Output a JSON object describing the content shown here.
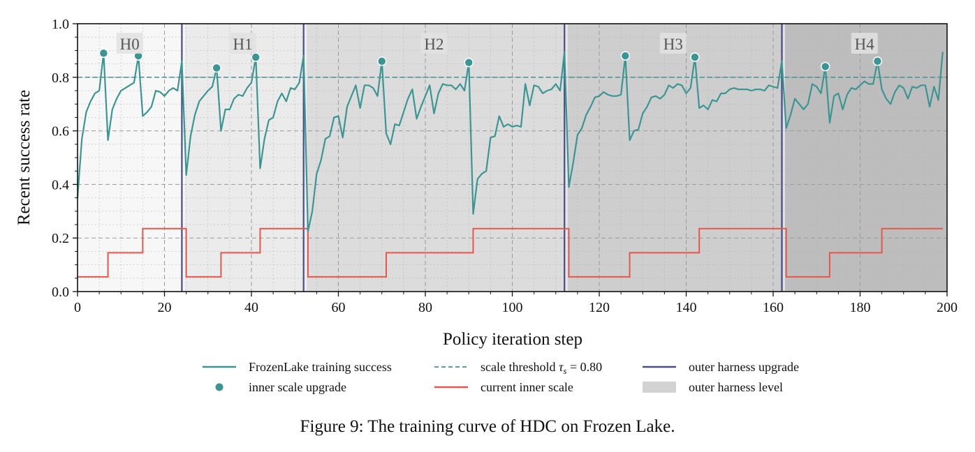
{
  "caption": "Figure 9: The training curve of HDC on Frozen Lake.",
  "chart_data": {
    "type": "line",
    "xlabel": "Policy iteration step",
    "ylabel": "Recent success rate",
    "xlim": [
      0,
      200
    ],
    "ylim": [
      0.0,
      1.0
    ],
    "x_ticks": [
      0,
      20,
      40,
      60,
      80,
      100,
      120,
      140,
      160,
      180,
      200
    ],
    "y_ticks": [
      "0.0",
      "0.2",
      "0.4",
      "0.6",
      "0.8",
      "1.0"
    ],
    "grid": true,
    "legend_placement": "below plot",
    "legend": [
      {
        "label": "FrozenLake training success",
        "kind": "line",
        "color": "#3a9692"
      },
      {
        "label": "inner scale upgrade",
        "kind": "marker",
        "color": "#3a9692"
      },
      {
        "label": "scale threshold τ_s = 0.80",
        "kind": "dashed",
        "color": "#3a9692"
      },
      {
        "label": "current inner scale",
        "kind": "line",
        "color": "#e8564a"
      },
      {
        "label": "outer harness upgrade",
        "kind": "line",
        "color": "#4a4e8c"
      },
      {
        "label": "outer harness level",
        "kind": "patch",
        "color": "#d3d3d3"
      }
    ],
    "threshold": 0.8,
    "outer_harness_upgrades": [
      24,
      52,
      112,
      162
    ],
    "harness_levels": [
      {
        "label": "H0",
        "x_start": 0,
        "x_end": 24,
        "label_x": 12,
        "color": "#f7f7f7"
      },
      {
        "label": "H1",
        "x_start": 24,
        "x_end": 52,
        "label_x": 38,
        "color": "#ebebeb"
      },
      {
        "label": "H2",
        "x_start": 52,
        "x_end": 112,
        "label_x": 82,
        "color": "#dcdcdc"
      },
      {
        "label": "H3",
        "x_start": 112,
        "x_end": 162,
        "label_x": 137,
        "color": "#cecece"
      },
      {
        "label": "H4",
        "x_start": 162,
        "x_end": 200,
        "label_x": 181,
        "color": "#bdbdbd"
      }
    ],
    "series": [
      {
        "name": "FrozenLake training success",
        "color": "#3a9692",
        "points": [
          [
            0,
            0.35
          ],
          [
            1,
            0.57
          ],
          [
            2,
            0.67
          ],
          [
            3,
            0.71
          ],
          [
            4,
            0.74
          ],
          [
            5,
            0.75
          ],
          [
            6,
            0.89
          ],
          [
            7,
            0.565
          ],
          [
            8,
            0.68
          ],
          [
            9,
            0.72
          ],
          [
            10,
            0.75
          ],
          [
            11,
            0.76
          ],
          [
            12,
            0.77
          ],
          [
            13,
            0.78
          ],
          [
            14,
            0.88
          ],
          [
            15,
            0.655
          ],
          [
            16,
            0.67
          ],
          [
            17,
            0.69
          ],
          [
            18,
            0.75
          ],
          [
            19,
            0.745
          ],
          [
            20,
            0.73
          ],
          [
            21,
            0.75
          ],
          [
            22,
            0.76
          ],
          [
            23,
            0.75
          ],
          [
            24,
            0.86
          ],
          [
            25,
            0.435
          ],
          [
            26,
            0.58
          ],
          [
            27,
            0.66
          ],
          [
            28,
            0.71
          ],
          [
            29,
            0.73
          ],
          [
            30,
            0.75
          ],
          [
            31,
            0.765
          ],
          [
            32,
            0.835
          ],
          [
            33,
            0.6
          ],
          [
            34,
            0.68
          ],
          [
            35,
            0.68
          ],
          [
            36,
            0.72
          ],
          [
            37,
            0.735
          ],
          [
            38,
            0.73
          ],
          [
            39,
            0.76
          ],
          [
            40,
            0.78
          ],
          [
            41,
            0.875
          ],
          [
            42,
            0.46
          ],
          [
            43,
            0.57
          ],
          [
            44,
            0.64
          ],
          [
            45,
            0.65
          ],
          [
            46,
            0.71
          ],
          [
            47,
            0.74
          ],
          [
            48,
            0.71
          ],
          [
            49,
            0.76
          ],
          [
            50,
            0.755
          ],
          [
            51,
            0.78
          ],
          [
            52,
            0.88
          ],
          [
            53,
            0.225
          ],
          [
            54,
            0.3
          ],
          [
            55,
            0.44
          ],
          [
            56,
            0.49
          ],
          [
            57,
            0.57
          ],
          [
            58,
            0.58
          ],
          [
            59,
            0.65
          ],
          [
            60,
            0.655
          ],
          [
            61,
            0.575
          ],
          [
            62,
            0.69
          ],
          [
            63,
            0.73
          ],
          [
            64,
            0.77
          ],
          [
            65,
            0.685
          ],
          [
            66,
            0.77
          ],
          [
            67,
            0.77
          ],
          [
            68,
            0.76
          ],
          [
            69,
            0.73
          ],
          [
            70,
            0.86
          ],
          [
            71,
            0.59
          ],
          [
            72,
            0.55
          ],
          [
            73,
            0.625
          ],
          [
            74,
            0.62
          ],
          [
            75,
            0.67
          ],
          [
            76,
            0.72
          ],
          [
            77,
            0.755
          ],
          [
            78,
            0.645
          ],
          [
            79,
            0.69
          ],
          [
            80,
            0.73
          ],
          [
            81,
            0.77
          ],
          [
            82,
            0.665
          ],
          [
            83,
            0.74
          ],
          [
            84,
            0.775
          ],
          [
            85,
            0.77
          ],
          [
            86,
            0.77
          ],
          [
            87,
            0.755
          ],
          [
            88,
            0.775
          ],
          [
            89,
            0.75
          ],
          [
            90,
            0.855
          ],
          [
            91,
            0.29
          ],
          [
            92,
            0.42
          ],
          [
            93,
            0.44
          ],
          [
            94,
            0.45
          ],
          [
            95,
            0.575
          ],
          [
            96,
            0.58
          ],
          [
            97,
            0.655
          ],
          [
            98,
            0.615
          ],
          [
            99,
            0.625
          ],
          [
            100,
            0.615
          ],
          [
            101,
            0.62
          ],
          [
            102,
            0.615
          ],
          [
            103,
            0.775
          ],
          [
            104,
            0.695
          ],
          [
            105,
            0.77
          ],
          [
            106,
            0.765
          ],
          [
            107,
            0.74
          ],
          [
            108,
            0.75
          ],
          [
            109,
            0.755
          ],
          [
            110,
            0.775
          ],
          [
            111,
            0.75
          ],
          [
            112,
            0.895
          ],
          [
            113,
            0.39
          ],
          [
            114,
            0.48
          ],
          [
            115,
            0.585
          ],
          [
            116,
            0.61
          ],
          [
            117,
            0.66
          ],
          [
            118,
            0.69
          ],
          [
            119,
            0.725
          ],
          [
            120,
            0.73
          ],
          [
            121,
            0.745
          ],
          [
            122,
            0.735
          ],
          [
            123,
            0.73
          ],
          [
            124,
            0.73
          ],
          [
            125,
            0.735
          ],
          [
            126,
            0.88
          ],
          [
            127,
            0.565
          ],
          [
            128,
            0.6
          ],
          [
            129,
            0.605
          ],
          [
            130,
            0.665
          ],
          [
            131,
            0.69
          ],
          [
            132,
            0.725
          ],
          [
            133,
            0.73
          ],
          [
            134,
            0.72
          ],
          [
            135,
            0.735
          ],
          [
            136,
            0.77
          ],
          [
            137,
            0.76
          ],
          [
            138,
            0.775
          ],
          [
            139,
            0.77
          ],
          [
            140,
            0.74
          ],
          [
            141,
            0.76
          ],
          [
            142,
            0.875
          ],
          [
            143,
            0.685
          ],
          [
            144,
            0.695
          ],
          [
            145,
            0.68
          ],
          [
            146,
            0.715
          ],
          [
            147,
            0.71
          ],
          [
            148,
            0.74
          ],
          [
            149,
            0.74
          ],
          [
            150,
            0.755
          ],
          [
            151,
            0.76
          ],
          [
            152,
            0.755
          ],
          [
            153,
            0.755
          ],
          [
            154,
            0.755
          ],
          [
            155,
            0.75
          ],
          [
            156,
            0.755
          ],
          [
            157,
            0.755
          ],
          [
            158,
            0.75
          ],
          [
            159,
            0.77
          ],
          [
            160,
            0.765
          ],
          [
            161,
            0.76
          ],
          [
            162,
            0.86
          ],
          [
            163,
            0.61
          ],
          [
            164,
            0.66
          ],
          [
            165,
            0.72
          ],
          [
            166,
            0.7
          ],
          [
            167,
            0.68
          ],
          [
            168,
            0.7
          ],
          [
            169,
            0.775
          ],
          [
            170,
            0.765
          ],
          [
            171,
            0.74
          ],
          [
            172,
            0.84
          ],
          [
            173,
            0.63
          ],
          [
            174,
            0.73
          ],
          [
            175,
            0.74
          ],
          [
            176,
            0.68
          ],
          [
            177,
            0.735
          ],
          [
            178,
            0.76
          ],
          [
            179,
            0.755
          ],
          [
            180,
            0.77
          ],
          [
            181,
            0.785
          ],
          [
            182,
            0.775
          ],
          [
            183,
            0.775
          ],
          [
            184,
            0.86
          ],
          [
            185,
            0.755
          ],
          [
            186,
            0.72
          ],
          [
            187,
            0.7
          ],
          [
            188,
            0.745
          ],
          [
            189,
            0.77
          ],
          [
            190,
            0.76
          ],
          [
            191,
            0.72
          ],
          [
            192,
            0.765
          ],
          [
            193,
            0.76
          ],
          [
            194,
            0.77
          ],
          [
            195,
            0.77
          ],
          [
            196,
            0.69
          ],
          [
            197,
            0.765
          ],
          [
            198,
            0.715
          ],
          [
            199,
            0.895
          ]
        ]
      },
      {
        "name": "current inner scale",
        "color": "#e8564a",
        "steps": [
          [
            0,
            0.055
          ],
          [
            7,
            0.145
          ],
          [
            15,
            0.235
          ],
          [
            25,
            0.055
          ],
          [
            33,
            0.145
          ],
          [
            42,
            0.235
          ],
          [
            53,
            0.055
          ],
          [
            71,
            0.145
          ],
          [
            91,
            0.235
          ],
          [
            113,
            0.055
          ],
          [
            127,
            0.145
          ],
          [
            143,
            0.235
          ],
          [
            163,
            0.055
          ],
          [
            173,
            0.145
          ],
          [
            185,
            0.235
          ],
          [
            199,
            0.235
          ]
        ]
      }
    ],
    "inner_scale_upgrades": [
      [
        6,
        0.89
      ],
      [
        14,
        0.88
      ],
      [
        32,
        0.835
      ],
      [
        41,
        0.875
      ],
      [
        70,
        0.86
      ],
      [
        90,
        0.855
      ],
      [
        126,
        0.88
      ],
      [
        142,
        0.875
      ],
      [
        172,
        0.84
      ],
      [
        184,
        0.86
      ]
    ]
  }
}
